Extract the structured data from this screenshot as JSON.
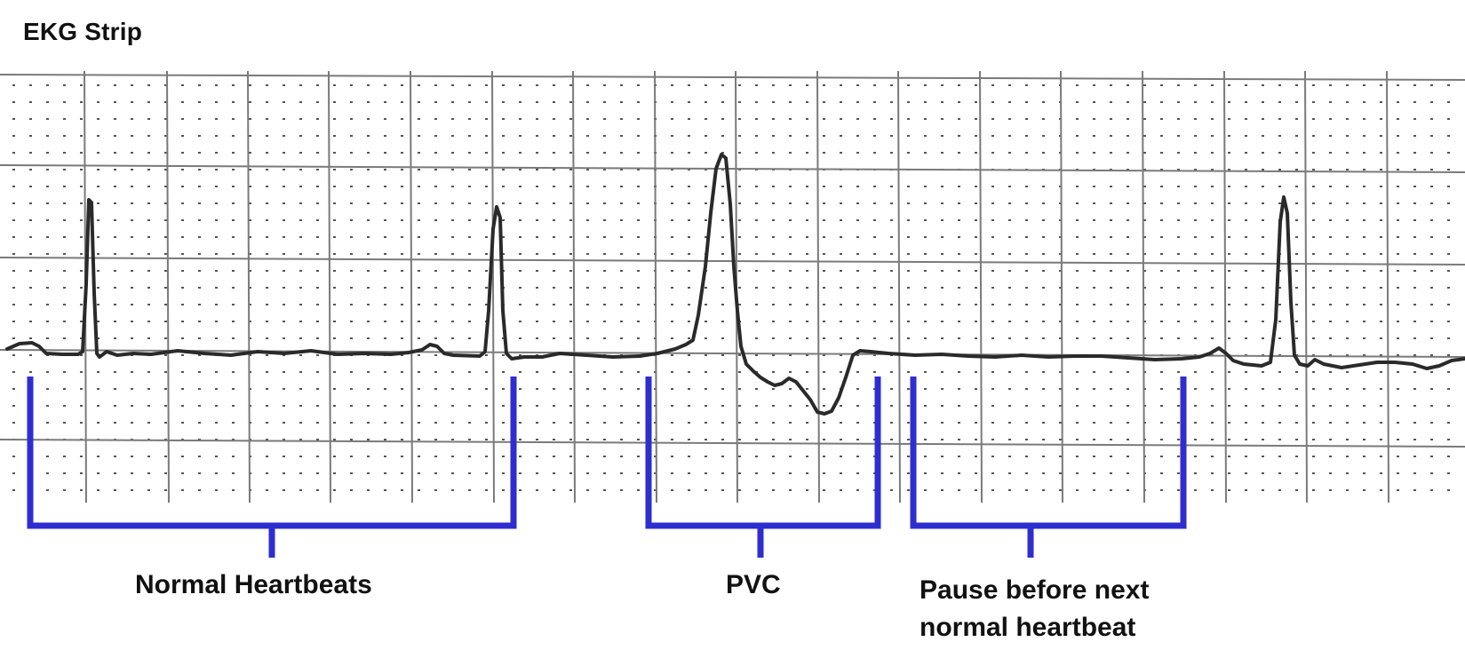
{
  "title": "EKG Strip",
  "annotations": {
    "normal": "Normal Heartbeats",
    "pvc": "PVC",
    "pause_line1": "Pause before next",
    "pause_line2": "normal heartbeat"
  },
  "colors": {
    "trace": "#2a2a2a",
    "grid_major": "#7a7a7a",
    "grid_dots": "#555555",
    "bracket": "#2e2ed0"
  }
}
